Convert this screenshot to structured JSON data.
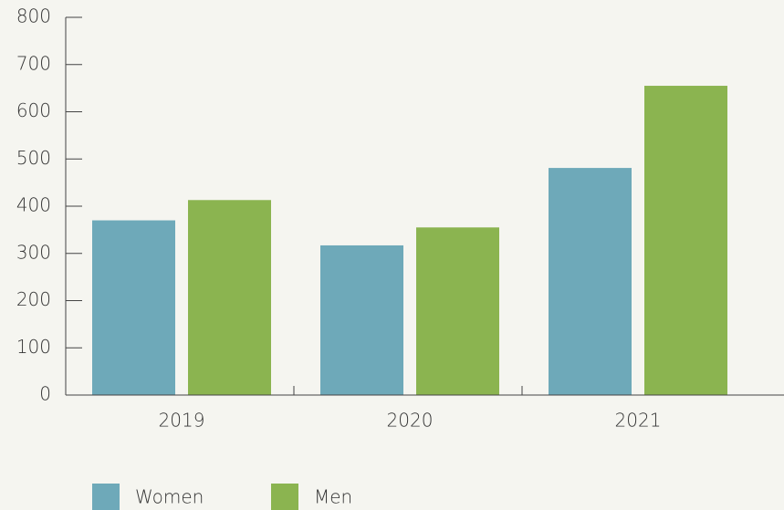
{
  "chart_data": {
    "type": "bar",
    "categories": [
      "2019",
      "2020",
      "2021"
    ],
    "series": [
      {
        "name": "Women",
        "color": "#6ea9b9",
        "values": [
          370,
          317,
          481
        ]
      },
      {
        "name": "Men",
        "color": "#8bb450",
        "values": [
          413,
          355,
          655
        ]
      }
    ],
    "ylim": [
      0,
      800
    ],
    "yticks": [
      0,
      100,
      200,
      300,
      400,
      500,
      600,
      700,
      800
    ],
    "legend": "bottom"
  }
}
